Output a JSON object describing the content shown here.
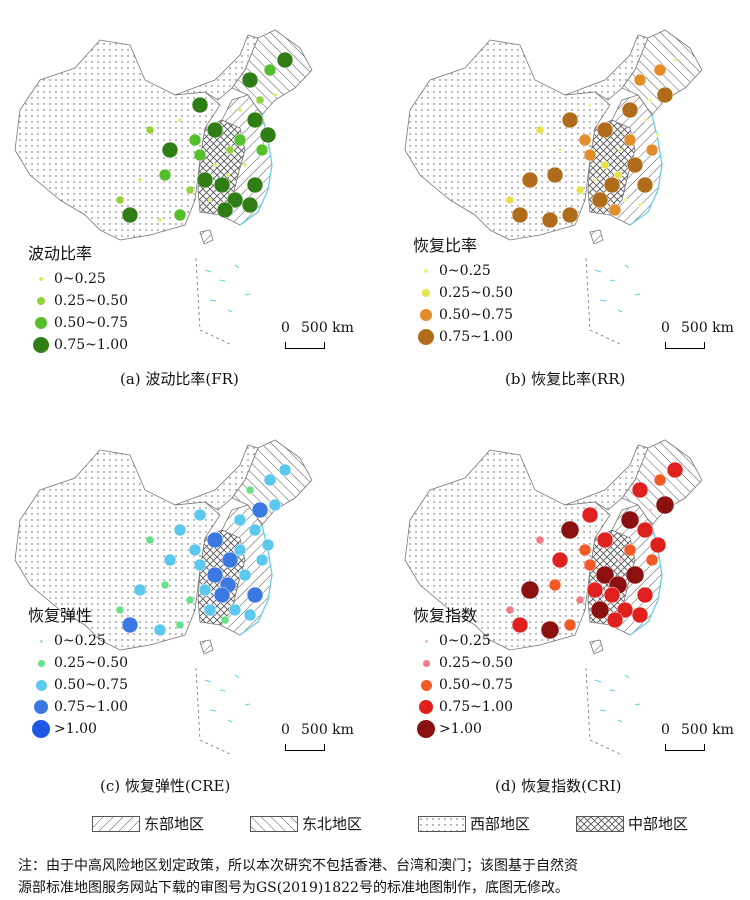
{
  "panels": [
    {
      "legend_title": "波动比率",
      "legend_items": [
        "0~0.25",
        "0.25~0.50",
        "0.50~0.75",
        "0.75~1.00"
      ],
      "colors": [
        "#d4ef55",
        "#8fd23a",
        "#54bf2a",
        "#2f7d14"
      ],
      "caption": "(a) 波动比率(FR)"
    },
    {
      "legend_title": "恢复比率",
      "legend_items": [
        "0~0.25",
        "0.25~0.50",
        "0.50~0.75",
        "0.75~1.00"
      ],
      "colors": [
        "#f3f08a",
        "#e6e24a",
        "#e38c2a",
        "#b06c1a"
      ],
      "caption": "(b) 恢复比率(RR)"
    },
    {
      "legend_title": "恢复弹性",
      "legend_items": [
        "0~0.25",
        "0.25~0.50",
        "0.50~0.75",
        "0.75~1.00",
        ">1.00"
      ],
      "colors": [
        "#a8e0c8",
        "#66e08a",
        "#5cc8ee",
        "#3c78e2",
        "#1e56e6"
      ],
      "caption": "(c) 恢复弹性(CRE)"
    },
    {
      "legend_title": "恢复指数",
      "legend_items": [
        "0~0.25",
        "0.25~0.50",
        "0.50~0.75",
        "0.75~1.00",
        ">1.00"
      ],
      "colors": [
        "#f7b6b6",
        "#ee7a8a",
        "#f05a24",
        "#e01f1f",
        "#8b1010"
      ],
      "caption": "(d) 恢复指数(CRI)"
    }
  ],
  "scale_bar": {
    "zero": "0",
    "label": "500 km"
  },
  "region_legend": [
    "东部地区",
    "东北地区",
    "西部地区",
    "中部地区"
  ],
  "note_line1": "注：由于中高风险地区划定政策，所以本次研究不包括香港、台湾和澳门；该图基于自然资",
  "note_line2": "源部标准地图服务网站下载的审图号为GS(2019)1822号的标准地图制作，底图无修改。"
}
